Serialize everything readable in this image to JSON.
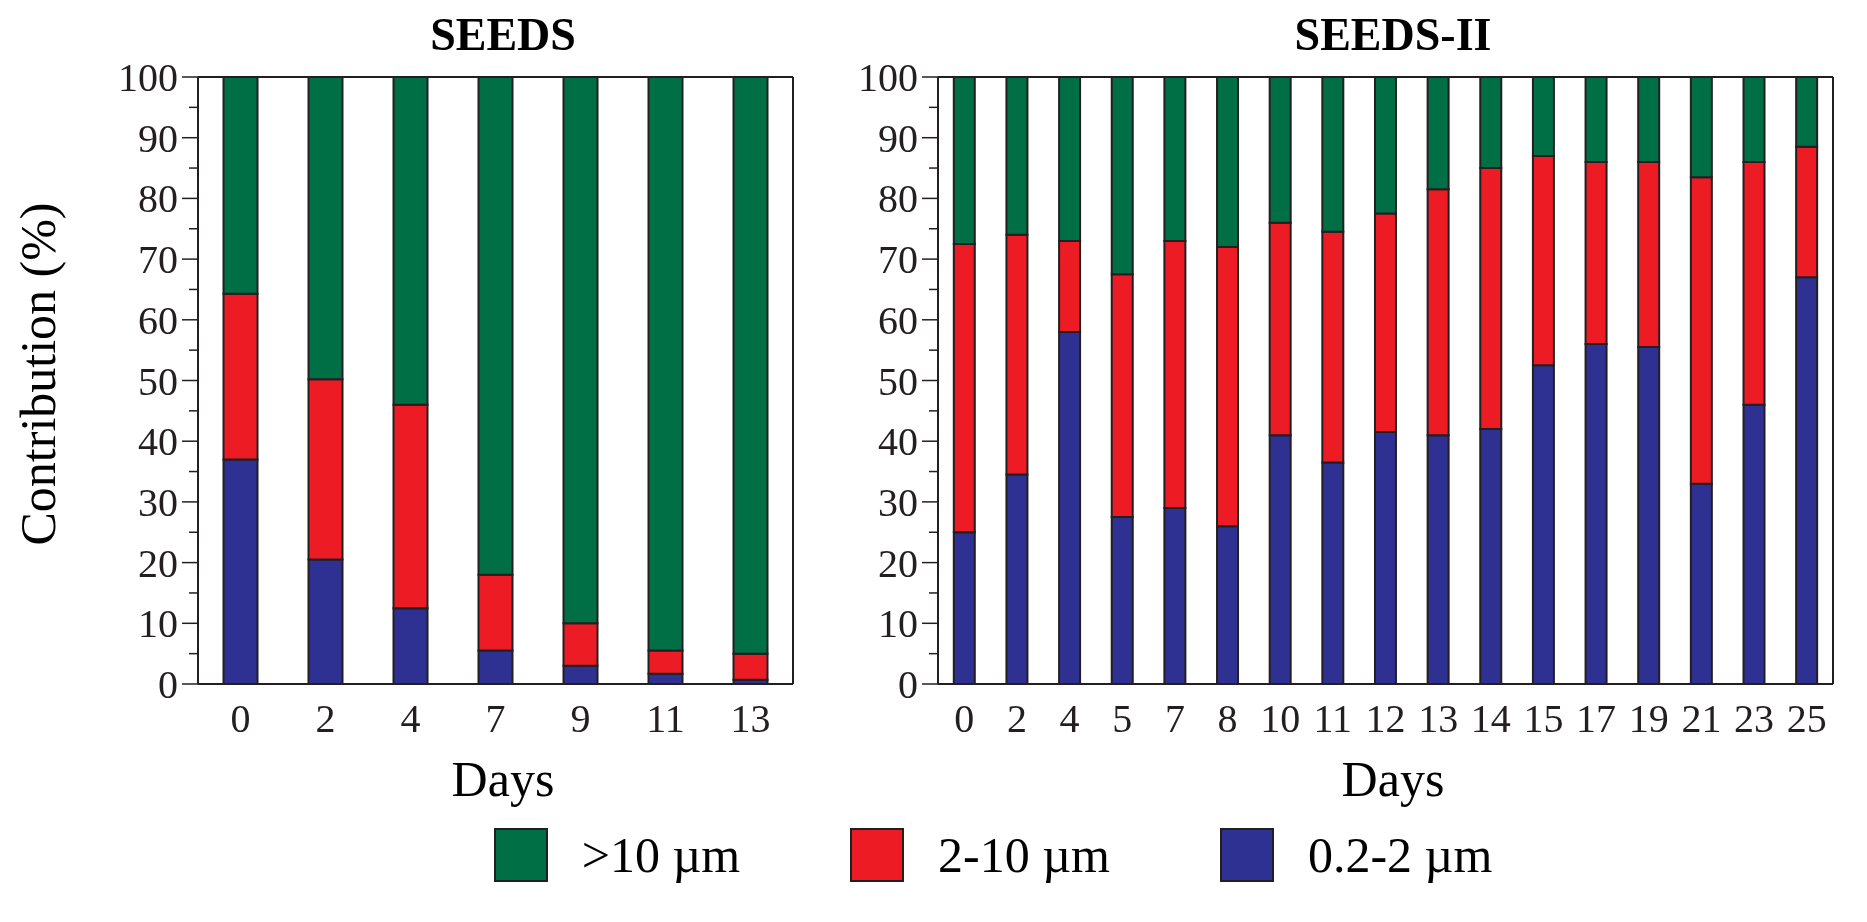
{
  "chart_data": [
    {
      "type": "bar",
      "title": "SEEDS",
      "xlabel": "Days",
      "ylabel": "Contribution (%)",
      "stacked": true,
      "categories": [
        "0",
        "2",
        "4",
        "7",
        "9",
        "11",
        "13"
      ],
      "series": [
        {
          "name": "0.2-2 µm",
          "color": "#2e3192",
          "values": [
            37,
            20.5,
            12.5,
            5.5,
            3,
            1.7,
            0.7
          ]
        },
        {
          "name": "2-10 µm",
          "color": "#ed1c24",
          "values": [
            27.3,
            29.7,
            33.5,
            12.5,
            7,
            3.8,
            4.3
          ]
        },
        {
          "name": ">10 µm",
          "color": "#006f45",
          "values": [
            35.7,
            49.8,
            54,
            82,
            90,
            94.5,
            95
          ]
        }
      ],
      "ylim": [
        0,
        100
      ],
      "yticks": [
        0,
        {
          "value": 5,
          "label": null
        },
        10,
        {
          "value": 15,
          "label": null
        },
        20,
        {
          "value": 25,
          "label": null
        },
        30,
        {
          "value": 35,
          "label": null
        },
        40,
        {
          "value": 45,
          "label": null
        },
        50,
        {
          "value": 55,
          "label": null
        },
        60,
        {
          "value": 65,
          "label": null
        },
        70,
        {
          "value": 75,
          "label": null
        },
        80,
        {
          "value": 85,
          "label": null
        },
        90,
        {
          "value": 95,
          "label": null
        },
        100
      ],
      "legend": "bottom"
    },
    {
      "type": "bar",
      "title": "SEEDS-II",
      "xlabel": "Days",
      "stacked": true,
      "categories": [
        "0",
        "2",
        "4",
        "5",
        "7",
        "8",
        "10",
        "11",
        "12",
        "13",
        "14",
        "15",
        "17",
        "19",
        "21",
        "23",
        "25"
      ],
      "series": [
        {
          "color": "#2e3192",
          "values": [
            25,
            34.5,
            58,
            27.5,
            29,
            26,
            41,
            36.5,
            41.5,
            41,
            42,
            52.5,
            56,
            55.5,
            33,
            46,
            67
          ]
        },
        {
          "color": "#ed1c24",
          "values": [
            47.5,
            39.5,
            15,
            40,
            44,
            46,
            35,
            38,
            36,
            40.5,
            43,
            34.5,
            30,
            30.5,
            50.5,
            40,
            21.5
          ]
        },
        {
          "color": "#006f45",
          "values": [
            27.5,
            26,
            27,
            32.5,
            27,
            28,
            24,
            25.5,
            22.5,
            18.5,
            15,
            13,
            14,
            14,
            16.5,
            14,
            11.5
          ]
        }
      ],
      "ylim": [
        0,
        100
      ],
      "yticks": [
        0,
        {
          "value": 5,
          "label": null
        },
        10,
        {
          "value": 15,
          "label": null
        },
        20,
        {
          "value": 25,
          "label": null
        },
        30,
        {
          "value": 35,
          "label": null
        },
        40,
        {
          "value": 45,
          "label": null
        },
        50,
        {
          "value": 55,
          "label": null
        },
        60,
        {
          "value": 65,
          "label": null
        },
        70,
        {
          "value": 75,
          "label": null
        },
        80,
        {
          "value": 85,
          "label": null
        },
        90,
        {
          "value": 95,
          "label": null
        },
        100
      ]
    }
  ]
}
